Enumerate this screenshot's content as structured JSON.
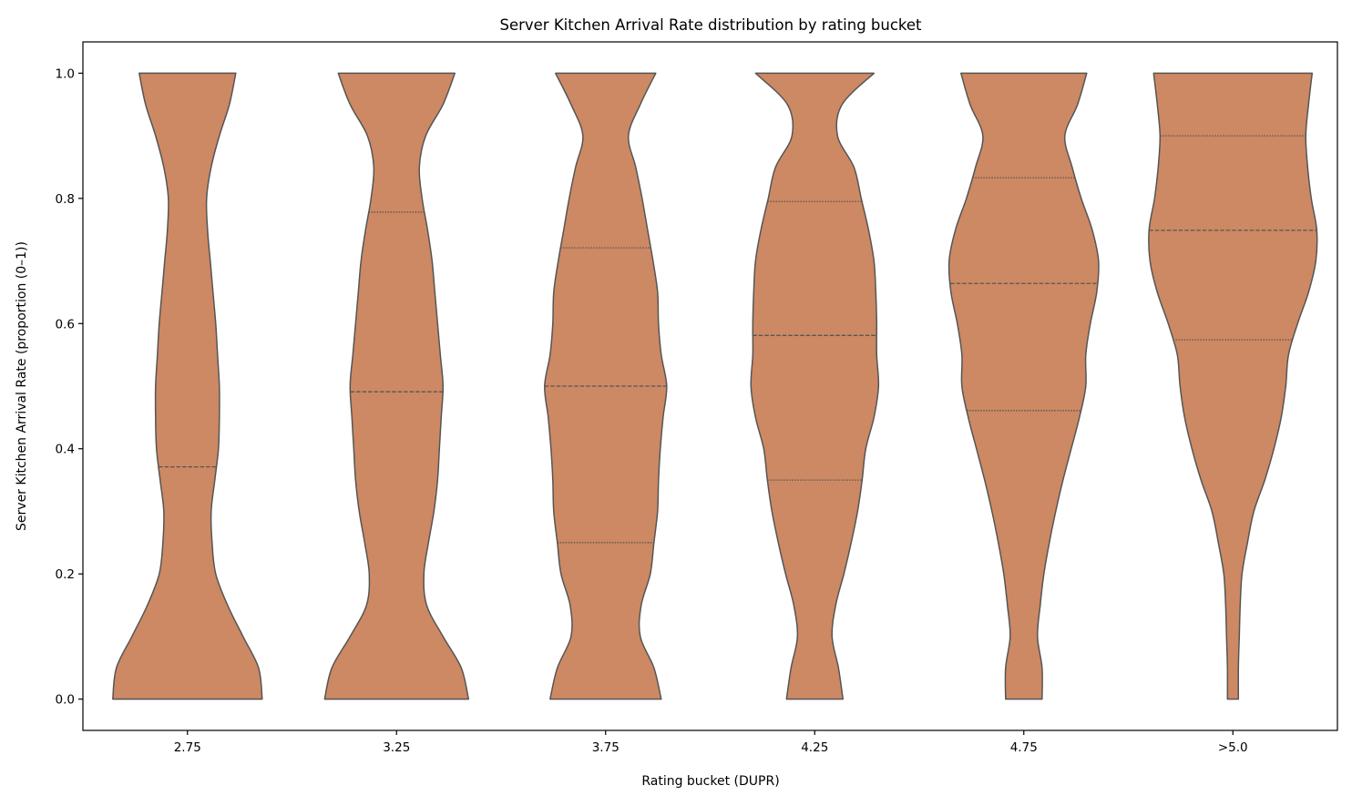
{
  "chart_data": {
    "type": "violin",
    "title": "Server Kitchen Arrival Rate distribution by rating bucket",
    "xlabel": "Rating bucket (DUPR)",
    "ylabel": "Server Kitchen Arrival Rate (proportion (0–1))",
    "ylim": [
      -0.05,
      1.05
    ],
    "yticks": [
      "0.0",
      "0.2",
      "0.4",
      "0.6",
      "0.8",
      "1.0"
    ],
    "ytick_values": [
      0,
      0.2,
      0.4,
      0.6,
      0.8,
      1.0
    ],
    "categories": [
      "2.75",
      "3.25",
      "3.75",
      "4.25",
      "4.75",
      ">5.0"
    ],
    "fill_color": "#cd8963",
    "line_color": "#555555",
    "grid": false,
    "inner": "quartile",
    "density_grid": [
      0,
      0.05,
      0.1,
      0.15,
      0.2,
      0.25,
      0.3,
      0.35,
      0.4,
      0.45,
      0.5,
      0.55,
      0.6,
      0.65,
      0.7,
      0.75,
      0.8,
      0.85,
      0.9,
      0.95,
      1.0
    ],
    "violins": [
      {
        "category": "2.75",
        "q1": 0.0,
        "median": 0.371,
        "q3": 1.0,
        "relative_density": [
          82,
          78,
          61,
          44,
          31,
          27,
          26,
          30,
          34,
          35,
          35,
          33,
          31,
          28,
          25,
          22,
          21,
          26,
          35,
          46,
          53
        ]
      },
      {
        "category": "3.25",
        "q1": 0.0,
        "median": 0.491,
        "q3": 0.778,
        "relative_density": [
          79,
          71,
          51,
          33,
          30,
          35,
          41,
          45,
          47,
          49,
          51,
          48,
          45,
          42,
          39,
          34,
          28,
          25,
          32,
          51,
          64
        ]
      },
      {
        "category": "3.75",
        "q1": 0.25,
        "median": 0.5,
        "q3": 0.721,
        "relative_density": [
          61,
          53,
          38,
          39,
          49,
          53,
          57,
          58,
          60,
          63,
          67,
          61,
          58,
          57,
          52,
          46,
          40,
          33,
          25,
          38,
          55
        ]
      },
      {
        "category": "4.25",
        "q1": 0.35,
        "median": 0.581,
        "q3": 0.795,
        "relative_density": [
          31,
          26,
          19,
          23,
          32,
          40,
          47,
          52,
          56,
          65,
          70,
          68,
          68,
          67,
          65,
          59,
          51,
          43,
          25,
          30,
          65
        ]
      },
      {
        "category": "4.75",
        "q1": 0.461,
        "median": 0.664,
        "q3": 0.833,
        "relative_density": [
          20,
          20,
          15,
          18,
          22,
          28,
          35,
          43,
          52,
          61,
          68,
          68,
          73,
          80,
          82,
          75,
          63,
          53,
          45,
          59,
          69
        ]
      },
      {
        "category": ">5.0",
        "q1": 0.574,
        "median": 0.749,
        "q3": 0.9,
        "relative_density": [
          6,
          6,
          7,
          8,
          10,
          16,
          23,
          35,
          45,
          53,
          58,
          61,
          71,
          83,
          91,
          92,
          86,
          82,
          80,
          83,
          87
        ]
      }
    ]
  }
}
